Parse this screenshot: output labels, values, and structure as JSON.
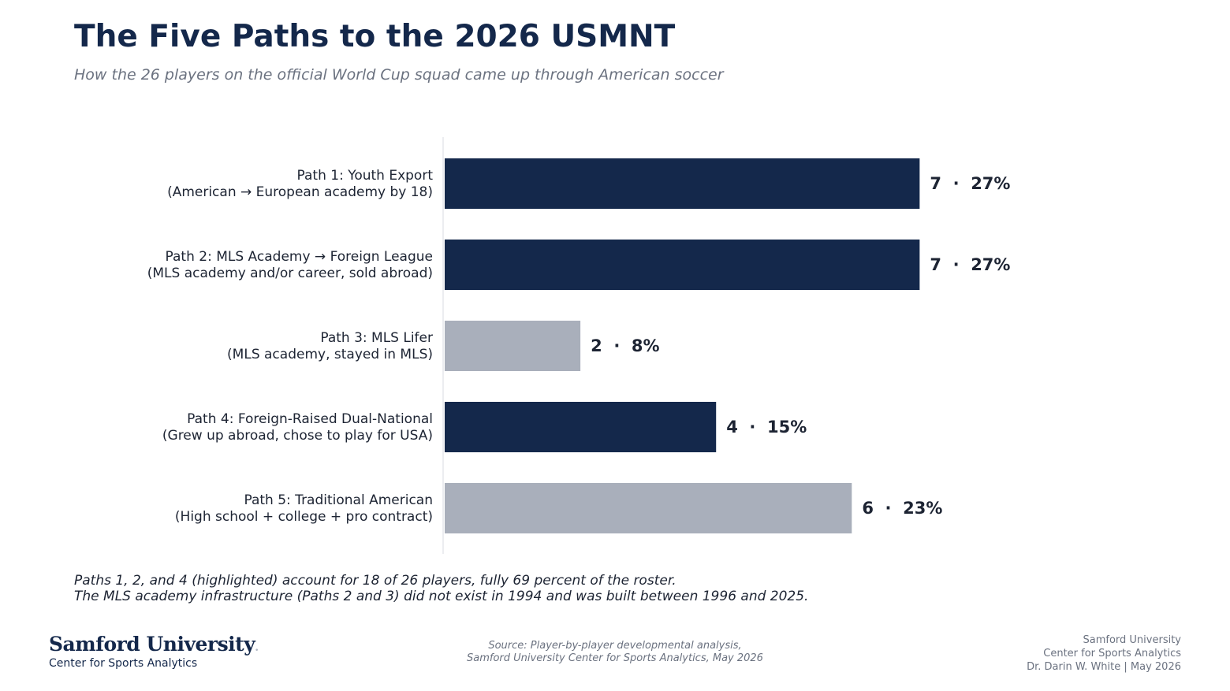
{
  "header": {
    "title": "The Five Paths to the 2026 USMNT",
    "subtitle": "How the 26 players on the official World Cup squad came up through American soccer"
  },
  "chart_data": {
    "type": "bar",
    "orientation": "horizontal",
    "categories": [
      [
        "Path 1: Youth Export",
        "(American → European academy by 18)"
      ],
      [
        "Path 2: MLS Academy → Foreign League",
        "(MLS academy and/or career, sold abroad)"
      ],
      [
        "Path 3: MLS Lifer",
        "(MLS academy, stayed in MLS)"
      ],
      [
        "Path 4: Foreign-Raised Dual-National",
        "(Grew up abroad, chose to play for USA)"
      ],
      [
        "Path 5: Traditional American",
        "(High school + college + pro contract)"
      ]
    ],
    "values": [
      7,
      7,
      2,
      4,
      6
    ],
    "percents": [
      "27%",
      "27%",
      "8%",
      "15%",
      "23%"
    ],
    "value_labels": [
      "7  ·  27%",
      "7  ·  27%",
      "2  ·  8%",
      "4  ·  15%",
      "6  ·  23%"
    ],
    "highlighted": [
      true,
      true,
      false,
      true,
      false
    ],
    "xlim": [
      0,
      7.6
    ],
    "colors": {
      "highlight": "#14284b",
      "muted": "#a9afbb",
      "axis": "#e5e7eb"
    }
  },
  "footnote": {
    "line1": "Paths 1, 2, and 4 (highlighted) account for 18 of 26 players, fully 69 percent of the roster.",
    "line2": "The MLS academy infrastructure (Paths 2 and 3) did not exist in 1994 and was built between 1996 and 2025."
  },
  "footer": {
    "logo_name": "Samford University",
    "logo_sub": "Center for Sports Analytics",
    "source_line1": "Source: Player-by-player developmental analysis,",
    "source_line2": "Samford University Center for Sports Analytics, May 2026",
    "credit_line1": "Samford University",
    "credit_line2": "Center for Sports Analytics",
    "credit_line3": "Dr. Darin W. White | May 2026"
  }
}
